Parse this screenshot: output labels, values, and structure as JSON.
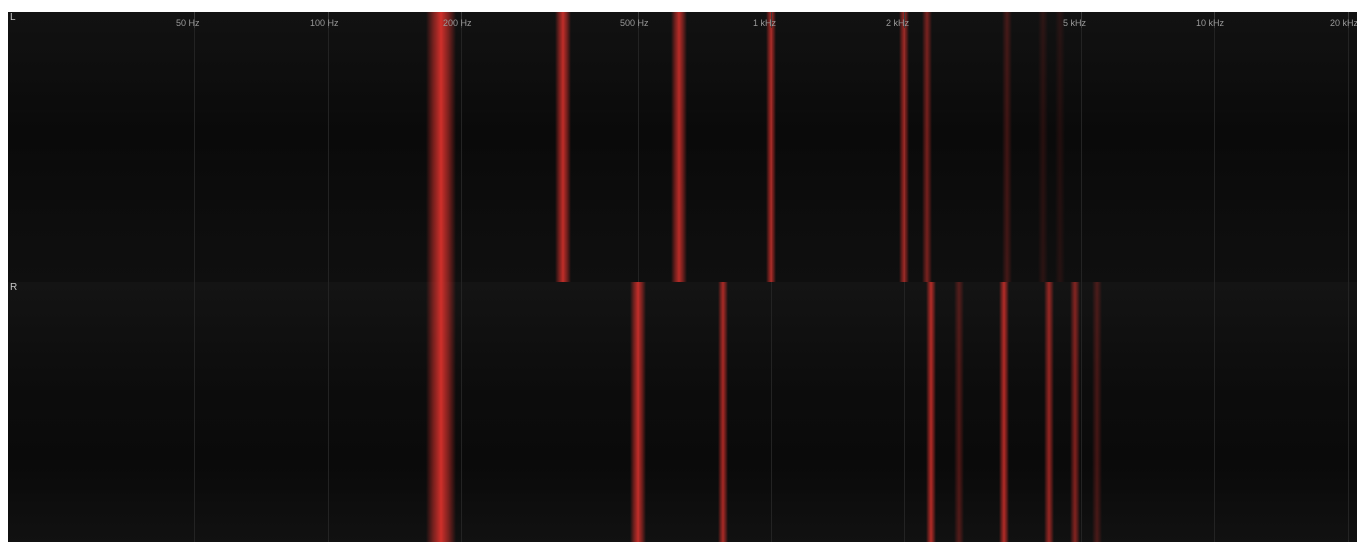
{
  "channels": [
    {
      "label": "L",
      "bands": [
        {
          "freq": 180,
          "alpha": 1.0
        },
        {
          "freq": 340,
          "alpha": 0.92
        },
        {
          "freq": 620,
          "alpha": 0.88
        },
        {
          "freq": 1000,
          "alpha": 0.8
        },
        {
          "freq": 2000,
          "alpha": 0.72
        },
        {
          "freq": 2250,
          "alpha": 0.55
        },
        {
          "freq": 3400,
          "alpha": 0.28
        },
        {
          "freq": 4100,
          "alpha": 0.15
        },
        {
          "freq": 4500,
          "alpha": 0.12
        }
      ]
    },
    {
      "label": "R",
      "bands": [
        {
          "freq": 180,
          "alpha": 1.0
        },
        {
          "freq": 500,
          "alpha": 0.92
        },
        {
          "freq": 780,
          "alpha": 0.8
        },
        {
          "freq": 2300,
          "alpha": 0.85
        },
        {
          "freq": 2650,
          "alpha": 0.35
        },
        {
          "freq": 3350,
          "alpha": 0.85
        },
        {
          "freq": 4250,
          "alpha": 0.7
        },
        {
          "freq": 4850,
          "alpha": 0.6
        },
        {
          "freq": 5450,
          "alpha": 0.3
        }
      ]
    }
  ],
  "frequency_axis": {
    "scale": "log",
    "range": [
      19,
      21000
    ],
    "ticks": [
      {
        "freq": 50,
        "label": "50 Hz"
      },
      {
        "freq": 100,
        "label": "100 Hz"
      },
      {
        "freq": 200,
        "label": "200 Hz"
      },
      {
        "freq": 500,
        "label": "500 Hz"
      },
      {
        "freq": 1000,
        "label": "1 kHz"
      },
      {
        "freq": 2000,
        "label": "2 kHz"
      },
      {
        "freq": 5000,
        "label": "5 kHz"
      },
      {
        "freq": 10000,
        "label": "10 kHz"
      },
      {
        "freq": 20000,
        "label": "20 kHz"
      }
    ]
  },
  "colors": {
    "background": "#0d0d0d",
    "band": "#d0302b",
    "gridline": "#232323",
    "label": "#9a9a9a"
  }
}
